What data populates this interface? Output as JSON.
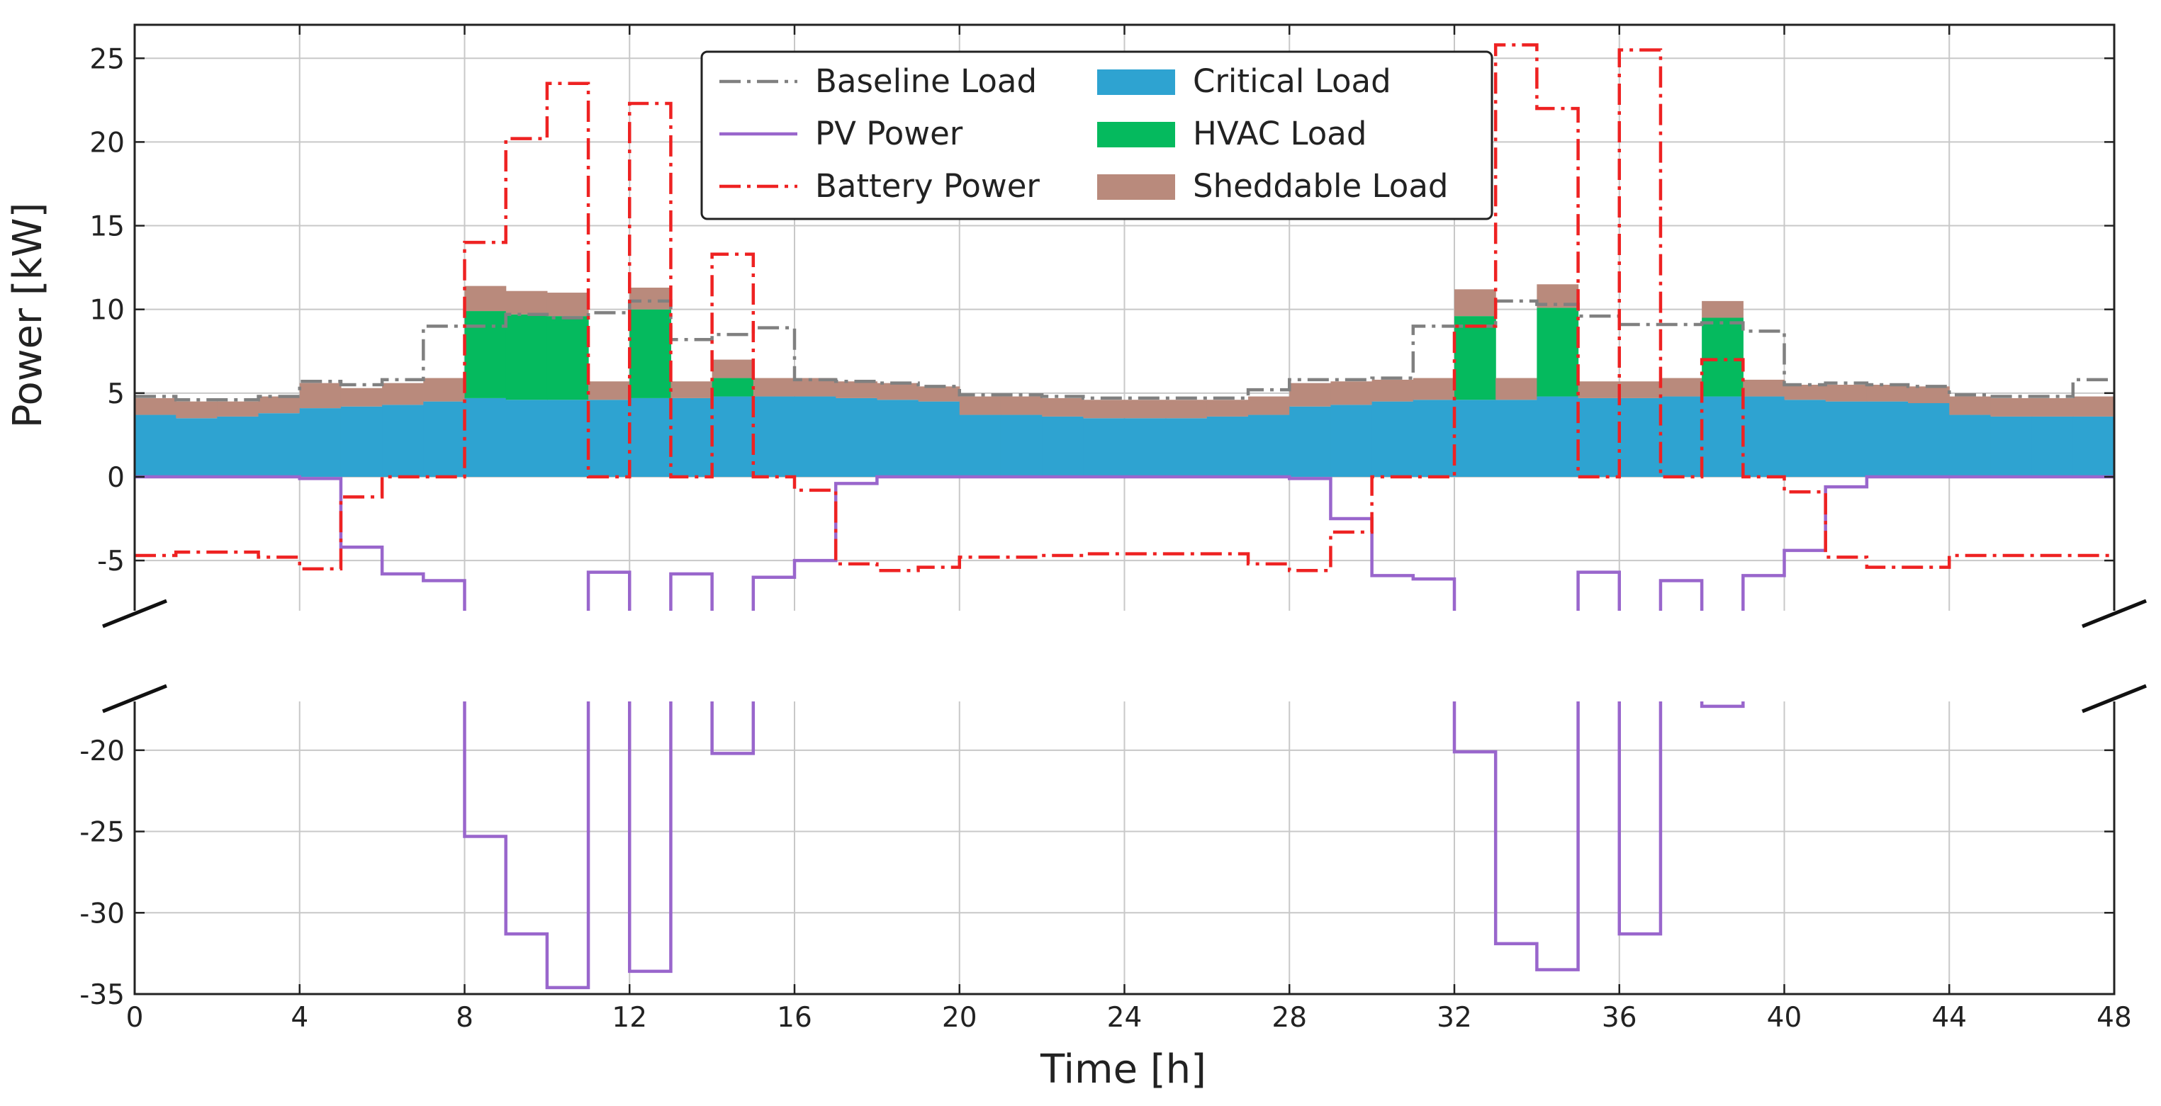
{
  "chart_data": {
    "type": "area",
    "xlabel": "Time [h]",
    "ylabel": "Power [kW]",
    "xlim": [
      0,
      48
    ],
    "upper_ylim": [
      -8,
      27
    ],
    "lower_ylim": [
      -35,
      -17
    ],
    "x_ticks": [
      "0",
      "4",
      "8",
      "12",
      "16",
      "20",
      "24",
      "28",
      "32",
      "36",
      "40",
      "44",
      "48"
    ],
    "upper_y_ticks": [
      "25",
      "20",
      "15",
      "10",
      "5",
      "0",
      "-5"
    ],
    "lower_y_ticks": [
      "-20",
      "-25",
      "-30",
      "-35"
    ],
    "grid": true,
    "legend_location": "top-center",
    "colors": {
      "baseline": "#808080",
      "pv": "#9966CC",
      "battery": "#EE2222",
      "critical": "#2EA3D1",
      "hvac": "#05BA5E",
      "sheddable": "#B98A7C"
    },
    "series": [
      {
        "name": "Baseline Load",
        "style": "dash-dot",
        "values": [
          4.8,
          4.6,
          4.6,
          4.8,
          5.7,
          5.5,
          5.8,
          9.0,
          9.0,
          9.7,
          9.5,
          9.8,
          10.5,
          8.2,
          8.5,
          8.9,
          5.8,
          5.7,
          5.6,
          5.4,
          4.9,
          4.9,
          4.8,
          4.7,
          4.7,
          4.7,
          4.7,
          5.2,
          5.8,
          5.8,
          5.9,
          9.0,
          9.0,
          10.5,
          10.3,
          9.6,
          9.1,
          9.1,
          9.2,
          8.7,
          5.5,
          5.6,
          5.5,
          5.4,
          4.9,
          4.8,
          4.8,
          5.8
        ]
      },
      {
        "name": "PV Power",
        "style": "solid",
        "values": [
          0,
          0,
          0,
          0,
          -0.1,
          -4.2,
          -5.8,
          -6.2,
          -25.3,
          -31.3,
          -34.6,
          -5.7,
          -33.6,
          -5.8,
          -20.2,
          -6.0,
          -5.0,
          -0.4,
          0,
          0,
          0,
          0,
          0,
          0,
          0,
          0,
          0,
          0,
          -0.1,
          -2.5,
          -5.9,
          -6.1,
          -20.1,
          -31.9,
          -33.5,
          -5.7,
          -31.3,
          -6.2,
          -17.3,
          -5.9,
          -4.4,
          -0.6,
          0,
          0,
          0,
          0,
          0,
          0
        ]
      },
      {
        "name": "Battery Power",
        "style": "dash-dot",
        "values": [
          -4.7,
          -4.5,
          -4.5,
          -4.8,
          -5.5,
          -1.2,
          0,
          0,
          14.0,
          20.2,
          23.5,
          0,
          22.3,
          0,
          13.3,
          0,
          -0.8,
          -5.2,
          -5.6,
          -5.4,
          -4.8,
          -4.8,
          -4.7,
          -4.6,
          -4.6,
          -4.6,
          -4.6,
          -5.2,
          -5.6,
          -3.3,
          0,
          0,
          9.0,
          25.8,
          22.0,
          0,
          25.5,
          0,
          7.0,
          0,
          -0.9,
          -4.8,
          -5.4,
          -5.4,
          -4.7,
          -4.7,
          -4.7,
          -4.7
        ]
      },
      {
        "name": "Critical Load",
        "style": "stacked-area",
        "values": [
          3.7,
          3.5,
          3.6,
          3.8,
          4.1,
          4.2,
          4.3,
          4.5,
          4.7,
          4.6,
          4.6,
          4.6,
          4.7,
          4.7,
          4.8,
          4.8,
          4.8,
          4.7,
          4.6,
          4.5,
          3.7,
          3.7,
          3.6,
          3.5,
          3.5,
          3.5,
          3.6,
          3.7,
          4.2,
          4.3,
          4.5,
          4.6,
          4.6,
          4.6,
          4.8,
          4.7,
          4.7,
          4.8,
          4.8,
          4.8,
          4.6,
          4.5,
          4.5,
          4.4,
          3.7,
          3.6,
          3.6,
          3.6
        ]
      },
      {
        "name": "HVAC Load",
        "style": "stacked-area",
        "values": [
          0,
          0,
          0,
          0,
          0,
          0,
          0,
          0,
          5.2,
          5.1,
          5.0,
          0,
          5.3,
          0,
          1.1,
          0,
          0,
          0,
          0,
          0,
          0,
          0,
          0,
          0,
          0,
          0,
          0,
          0,
          0,
          0,
          0,
          0,
          5.0,
          0,
          5.3,
          0,
          0,
          0,
          4.7,
          0,
          0,
          0,
          0,
          0,
          0,
          0,
          0,
          0
        ]
      },
      {
        "name": "Sheddable Load",
        "style": "stacked-area",
        "values": [
          1.0,
          1.0,
          0.9,
          1.0,
          1.5,
          1.1,
          1.3,
          1.4,
          1.5,
          1.4,
          1.4,
          1.1,
          1.3,
          1.0,
          1.1,
          1.1,
          1.1,
          1.0,
          1.0,
          0.9,
          1.1,
          1.1,
          1.1,
          1.1,
          1.1,
          1.1,
          1.0,
          1.1,
          1.4,
          1.4,
          1.3,
          1.3,
          1.6,
          1.3,
          1.4,
          1.0,
          1.0,
          1.1,
          1.0,
          1.0,
          0.9,
          1.0,
          1.0,
          1.0,
          1.1,
          1.1,
          1.1,
          1.2
        ]
      }
    ]
  }
}
